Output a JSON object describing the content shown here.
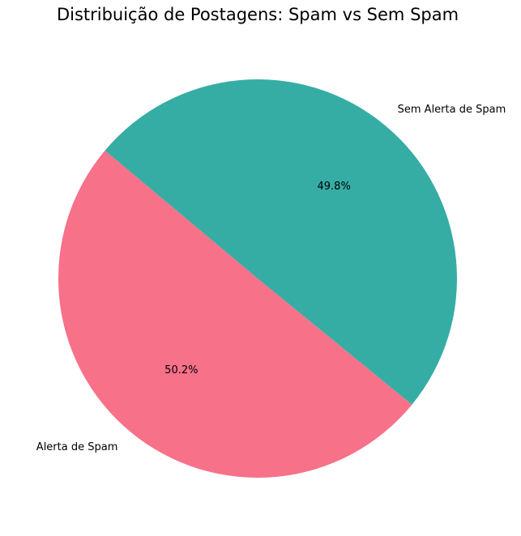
{
  "chart_data": {
    "type": "pie",
    "title": "Distribuição de Postagens: Spam vs Sem Spam",
    "slices": [
      {
        "label": "Alerta de Spam",
        "percent": 50.2,
        "percent_label": "50.2%",
        "color": "#f77189"
      },
      {
        "label": "Sem Alerta de Spam",
        "percent": 49.8,
        "percent_label": "49.8%",
        "color": "#36ada4"
      }
    ],
    "start_angle_deg": 140,
    "direction": "counterclockwise",
    "legend": "none"
  }
}
